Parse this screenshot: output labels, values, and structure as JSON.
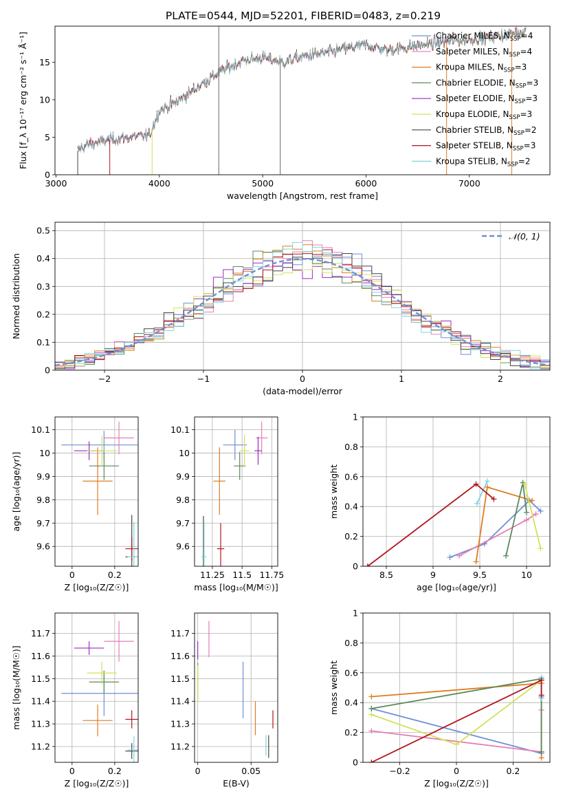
{
  "figure": {
    "title": "PLATE=0544, MJD=52201, FIBERID=0483, z=0.219"
  },
  "colors": {
    "Chabrier MILES": "#6f8fd6",
    "Salpeter MILES": "#e67db6",
    "Kroupa MILES": "#e07b1f",
    "Chabrier ELODIE": "#5a8a5a",
    "Salpeter ELODIE": "#9b2bbf",
    "Kroupa ELODIE": "#d4e05a",
    "Chabrier STELIB": "#444444",
    "Salpeter STELIB": "#b0141c",
    "Kroupa STELIB": "#7fd4e0",
    "normal": "#6f8fd6",
    "grid": "#b0b0b0"
  },
  "chart_data": [
    {
      "id": "spectrum",
      "type": "line",
      "xlabel": "wavelength [Angstrom, rest frame]",
      "ylabel": "Flux [f_λ 10⁻¹⁷ erg cm⁻² s⁻¹ Å⁻¹]",
      "xlim": [
        2990,
        7780
      ],
      "ylim": [
        0,
        19.8
      ],
      "xticks": [
        3000,
        4000,
        5000,
        6000,
        7000
      ],
      "yticks": [
        0,
        5,
        10,
        15
      ],
      "grid": false,
      "legend_position": "lower-right",
      "series": [
        {
          "name": "Chabrier MILES",
          "nssp": "4"
        },
        {
          "name": "Salpeter MILES",
          "nssp": "4"
        },
        {
          "name": "Kroupa MILES",
          "nssp": "3"
        },
        {
          "name": "Chabrier ELODIE",
          "nssp": "3"
        },
        {
          "name": "Salpeter ELODIE",
          "nssp": "3"
        },
        {
          "name": "Kroupa ELODIE",
          "nssp": "3"
        },
        {
          "name": "Chabrier STELIB",
          "nssp": "2"
        },
        {
          "name": "Salpeter STELIB",
          "nssp": "3"
        },
        {
          "name": "Kroupa STELIB",
          "nssp": "2"
        }
      ],
      "continuum": {
        "x": [
          3210,
          3300,
          3500,
          3700,
          3900,
          4000,
          4200,
          4400,
          4600,
          4800,
          5000,
          5200,
          5400,
          5600,
          5800,
          6000,
          6200,
          6400,
          6600,
          6800,
          7000,
          7200,
          7400,
          7550
        ],
        "y": [
          3.2,
          4.0,
          4.6,
          5.0,
          5.2,
          8.5,
          10.0,
          12.0,
          13.8,
          15.2,
          15.6,
          15.0,
          15.8,
          16.2,
          16.8,
          17.3,
          16.6,
          17.0,
          17.4,
          17.8,
          18.0,
          18.4,
          18.8,
          19.2
        ]
      }
    },
    {
      "id": "residuals",
      "type": "line",
      "xlabel": "(data-model)/error",
      "ylabel": "Normed distribution",
      "xlim": [
        -2.5,
        2.5
      ],
      "ylim": [
        0,
        0.53
      ],
      "xticks": [
        -2,
        -1,
        0,
        1,
        2
      ],
      "yticks": [
        0.0,
        0.1,
        0.2,
        0.3,
        0.4,
        0.5
      ],
      "grid": true,
      "legend_position": "top-right",
      "normal_label": "𝒩(0, 1)",
      "bins": [
        -2.5,
        2.5,
        50
      ]
    },
    {
      "id": "age-vs-Z",
      "type": "scatter",
      "xlabel": "Z [log₁₀(Z/Z☉)]",
      "ylabel": "age  [log₁₀(age/yr)]",
      "xlim": [
        -0.08,
        0.31
      ],
      "ylim": [
        9.515,
        10.155
      ],
      "xticks": [
        0.0,
        0.2
      ],
      "yticks": [
        9.6,
        9.7,
        9.8,
        9.9,
        10.0,
        10.1
      ],
      "grid": true,
      "points": [
        {
          "model": "Chabrier MILES",
          "x": 0.15,
          "xerr": 0.2,
          "y": 10.035,
          "yerr": 0.06
        },
        {
          "model": "Salpeter MILES",
          "x": 0.22,
          "xerr": 0.07,
          "y": 10.065,
          "yerr": 0.07
        },
        {
          "model": "Kroupa MILES",
          "x": 0.12,
          "xerr": 0.07,
          "y": 9.88,
          "yerr": 0.145
        },
        {
          "model": "Chabrier ELODIE",
          "x": 0.15,
          "xerr": 0.07,
          "y": 9.945,
          "yerr": 0.06
        },
        {
          "model": "Salpeter ELODIE",
          "x": 0.08,
          "xerr": 0.07,
          "y": 10.01,
          "yerr": 0.04
        },
        {
          "model": "Kroupa ELODIE",
          "x": 0.14,
          "xerr": 0.07,
          "y": 10.01,
          "yerr": 0.065
        },
        {
          "model": "Chabrier STELIB",
          "x": 0.28,
          "xerr": 0.03,
          "y": 9.555,
          "yerr": 0.18
        },
        {
          "model": "Salpeter STELIB",
          "x": 0.28,
          "xerr": 0.03,
          "y": 9.59,
          "yerr": 0.05
        },
        {
          "model": "Kroupa STELIB",
          "x": 0.29,
          "xerr": 0.03,
          "y": 9.555,
          "yerr": 0.15
        }
      ]
    },
    {
      "id": "age-vs-mass",
      "type": "scatter",
      "xlabel": "mass [log₁₀(M/M☉)]",
      "ylabel": "",
      "xlim": [
        11.1,
        11.8
      ],
      "ylim": [
        9.515,
        10.155
      ],
      "xticks": [
        11.25,
        11.5,
        11.75
      ],
      "yticks": [
        9.6,
        9.7,
        9.8,
        9.9,
        10.0,
        10.1
      ],
      "grid": true,
      "points": [
        {
          "model": "Chabrier MILES",
          "x": 11.44,
          "xerr": 0.1,
          "y": 10.035,
          "yerr": 0.065
        },
        {
          "model": "Salpeter MILES",
          "x": 11.665,
          "xerr": 0.05,
          "y": 10.065,
          "yerr": 0.07
        },
        {
          "model": "Kroupa MILES",
          "x": 11.31,
          "xerr": 0.05,
          "y": 9.88,
          "yerr": 0.145
        },
        {
          "model": "Chabrier ELODIE",
          "x": 11.48,
          "xerr": 0.05,
          "y": 9.945,
          "yerr": 0.06
        },
        {
          "model": "Salpeter ELODIE",
          "x": 11.635,
          "xerr": 0.03,
          "y": 10.01,
          "yerr": 0.06
        },
        {
          "model": "Kroupa ELODIE",
          "x": 11.52,
          "xerr": 0.04,
          "y": 10.01,
          "yerr": 0.07
        },
        {
          "model": "Chabrier STELIB",
          "x": 11.175,
          "xerr": 0.015,
          "y": 9.555,
          "yerr": 0.175
        },
        {
          "model": "Salpeter STELIB",
          "x": 11.32,
          "xerr": 0.03,
          "y": 9.59,
          "yerr": 0.11
        },
        {
          "model": "Kroupa STELIB",
          "x": 11.18,
          "xerr": 0.02,
          "y": 9.555,
          "yerr": 0.15
        }
      ]
    },
    {
      "id": "massweight-vs-age",
      "type": "line",
      "xlabel": "age  [log₁₀(age/yr)]",
      "ylabel": "mass weight",
      "xlim": [
        8.25,
        10.25
      ],
      "ylim": [
        0,
        1.0
      ],
      "xticks": [
        8.5,
        9.0,
        9.5,
        10.0
      ],
      "yticks": [
        0.0,
        0.2,
        0.4,
        0.6,
        0.8,
        1.0
      ],
      "grid": true,
      "series": [
        {
          "model": "Chabrier MILES",
          "x": [
            9.18,
            9.55,
            10.03,
            10.15
          ],
          "y": [
            0.06,
            0.15,
            0.44,
            0.37
          ]
        },
        {
          "model": "Salpeter MILES",
          "x": [
            9.28,
            10.0,
            10.1
          ],
          "y": [
            0.07,
            0.31,
            0.35
          ]
        },
        {
          "model": "Kroupa MILES",
          "x": [
            9.46,
            9.58,
            10.06
          ],
          "y": [
            0.03,
            0.53,
            0.44
          ]
        },
        {
          "model": "Chabrier ELODIE",
          "x": [
            9.78,
            9.96,
            10.0
          ],
          "y": [
            0.07,
            0.56,
            0.36
          ]
        },
        {
          "model": "Kroupa ELODIE",
          "x": [
            9.98,
            10.15
          ],
          "y": [
            0.55,
            0.12
          ]
        },
        {
          "model": "Kroupa STELIB",
          "x": [
            9.47,
            9.58
          ],
          "y": [
            0.42,
            0.57
          ]
        },
        {
          "model": "Salpeter STELIB",
          "x": [
            8.3,
            9.46,
            9.65
          ],
          "y": [
            0.0,
            0.55,
            0.45
          ]
        }
      ]
    },
    {
      "id": "mass-vs-Z",
      "type": "scatter",
      "xlabel": "Z [log₁₀(Z/Z☉)]",
      "ylabel": "mass [log₁₀(M/M☉)]",
      "xlim": [
        -0.08,
        0.31
      ],
      "ylim": [
        11.13,
        11.79
      ],
      "xticks": [
        0.0,
        0.2
      ],
      "yticks": [
        11.2,
        11.3,
        11.4,
        11.5,
        11.6,
        11.7
      ],
      "grid": true,
      "points": [
        {
          "model": "Chabrier MILES",
          "x": 0.15,
          "xerr": 0.2,
          "y": 11.435,
          "yerr": 0.1
        },
        {
          "model": "Salpeter MILES",
          "x": 0.22,
          "xerr": 0.07,
          "y": 11.665,
          "yerr": 0.09
        },
        {
          "model": "Kroupa MILES",
          "x": 0.12,
          "xerr": 0.07,
          "y": 11.315,
          "yerr": 0.07
        },
        {
          "model": "Chabrier ELODIE",
          "x": 0.15,
          "xerr": 0.07,
          "y": 11.485,
          "yerr": 0.05
        },
        {
          "model": "Salpeter ELODIE",
          "x": 0.08,
          "xerr": 0.07,
          "y": 11.635,
          "yerr": 0.03
        },
        {
          "model": "Kroupa ELODIE",
          "x": 0.14,
          "xerr": 0.07,
          "y": 11.525,
          "yerr": 0.05
        },
        {
          "model": "Chabrier STELIB",
          "x": 0.28,
          "xerr": 0.03,
          "y": 11.18,
          "yerr": 0.035
        },
        {
          "model": "Salpeter STELIB",
          "x": 0.28,
          "xerr": 0.03,
          "y": 11.32,
          "yerr": 0.04
        },
        {
          "model": "Kroupa STELIB",
          "x": 0.29,
          "xerr": 0.03,
          "y": 11.185,
          "yerr": 0.06
        }
      ]
    },
    {
      "id": "mass-vs-ebv",
      "type": "scatter",
      "xlabel": "E(B-V)",
      "ylabel": "",
      "xlim": [
        -0.003,
        0.075
      ],
      "ylim": [
        11.13,
        11.79
      ],
      "xticks": [
        0.0,
        0.05
      ],
      "yticks": [
        11.2,
        11.3,
        11.4,
        11.5,
        11.6,
        11.7
      ],
      "grid": true,
      "points": [
        {
          "model": "Chabrier MILES",
          "x": 0.0425,
          "y": 11.45,
          "yerr": 0.125
        },
        {
          "model": "Salpeter MILES",
          "x": 0.0105,
          "y": 11.675,
          "yerr": 0.08
        },
        {
          "model": "Kroupa MILES",
          "x": 0.054,
          "y": 11.325,
          "yerr": 0.075
        },
        {
          "model": "Chabrier ELODIE",
          "x": 0.0,
          "y": 11.49,
          "yerr": 0.08
        },
        {
          "model": "Salpeter ELODIE",
          "x": 0.0,
          "y": 11.625,
          "yerr": 0.04
        },
        {
          "model": "Kroupa ELODIE",
          "x": 0.0,
          "y": 11.48,
          "yerr": 0.08
        },
        {
          "model": "Chabrier STELIB",
          "x": 0.0665,
          "y": 11.2,
          "yerr": 0.05
        },
        {
          "model": "Salpeter STELIB",
          "x": 0.0705,
          "y": 11.32,
          "yerr": 0.04
        },
        {
          "model": "Kroupa STELIB",
          "x": 0.064,
          "y": 11.205,
          "yerr": 0.045
        }
      ]
    },
    {
      "id": "massweight-vs-Z",
      "type": "line",
      "xlabel": "Z [log₁₀(Z/Z☉)]",
      "ylabel": "mass weight",
      "xlim": [
        -0.33,
        0.33
      ],
      "ylim": [
        0,
        1.0
      ],
      "xticks": [
        -0.2,
        0.0,
        0.2
      ],
      "yticks": [
        0.0,
        0.2,
        0.4,
        0.6,
        0.8,
        1.0
      ],
      "grid": true,
      "series": [
        {
          "model": "Chabrier MILES",
          "x": [
            -0.3,
            0.3,
            0.3
          ],
          "y": [
            0.36,
            0.06,
            0.44
          ]
        },
        {
          "model": "Salpeter MILES",
          "x": [
            -0.3,
            0.3,
            0.3
          ],
          "y": [
            0.21,
            0.07,
            0.35
          ]
        },
        {
          "model": "Kroupa MILES",
          "x": [
            -0.3,
            0.3,
            0.3
          ],
          "y": [
            0.44,
            0.53,
            0.03
          ]
        },
        {
          "model": "Chabrier ELODIE",
          "x": [
            -0.3,
            0.3,
            0.3
          ],
          "y": [
            0.36,
            0.56,
            0.07
          ]
        },
        {
          "model": "Kroupa ELODIE",
          "x": [
            -0.3,
            0.0,
            0.3
          ],
          "y": [
            0.32,
            0.12,
            0.55
          ]
        },
        {
          "model": "Kroupa STELIB",
          "x": [
            0.3,
            0.3
          ],
          "y": [
            0.57,
            0.43
          ]
        },
        {
          "model": "Salpeter STELIB",
          "x": [
            -0.3,
            0.3,
            0.3
          ],
          "y": [
            0.0,
            0.55,
            0.45
          ]
        }
      ]
    }
  ]
}
